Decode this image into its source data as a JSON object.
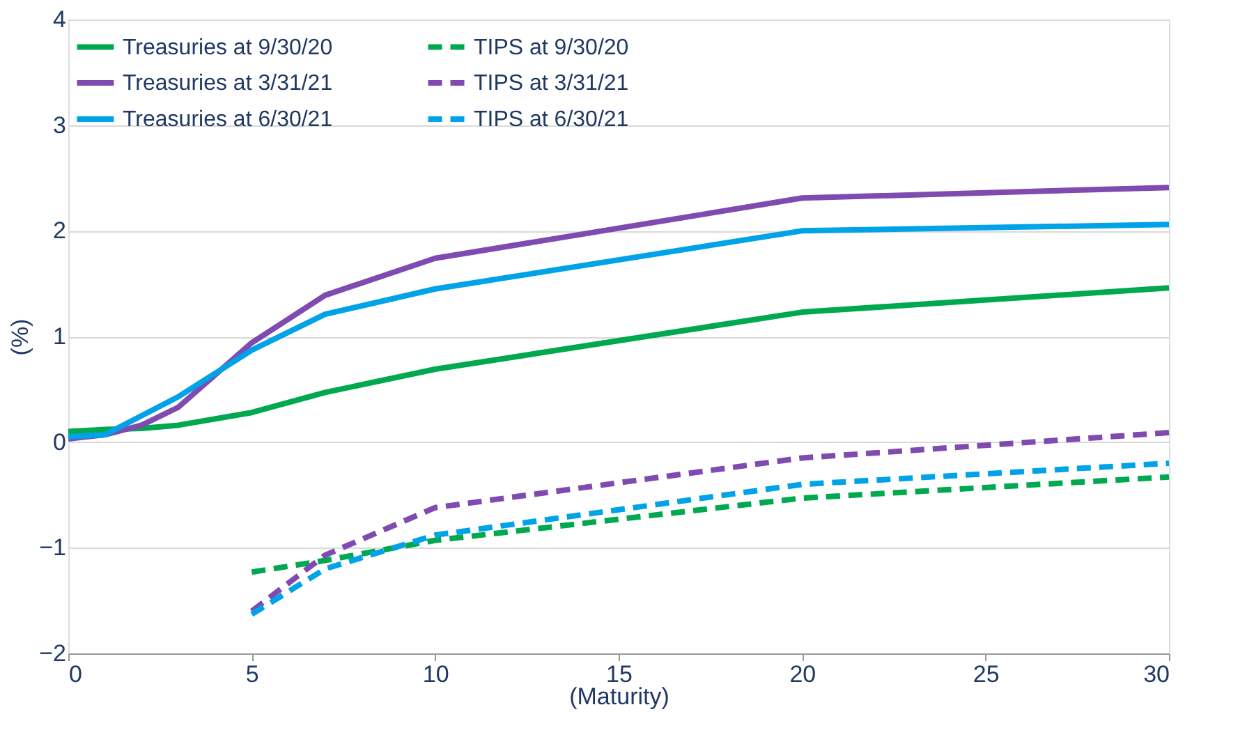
{
  "chart_data": {
    "type": "line",
    "xlabel": "(Maturity)",
    "ylabel": "(%)",
    "xlim": [
      0,
      30
    ],
    "xticks": [
      0,
      5,
      10,
      15,
      20,
      25,
      30
    ],
    "ylim": [
      -2,
      4
    ],
    "yticks": [
      -2,
      -1,
      0,
      1,
      2,
      3,
      4
    ],
    "grid": "y",
    "legend": "top left",
    "marker": "none",
    "series": [
      {
        "name": "Treasuries at 9/30/20",
        "color": "#00a94f",
        "line_style": "solid",
        "x": [
          0,
          1,
          2,
          3,
          5,
          7,
          10,
          20,
          30
        ],
        "values": [
          0.1,
          0.12,
          0.13,
          0.16,
          0.28,
          0.47,
          0.69,
          1.23,
          1.46
        ]
      },
      {
        "name": "Treasuries at 3/31/21",
        "color": "#7f4bb0",
        "line_style": "solid",
        "x": [
          0,
          1,
          2,
          3,
          5,
          7,
          10,
          20,
          30
        ],
        "values": [
          0.03,
          0.07,
          0.16,
          0.33,
          0.94,
          1.39,
          1.74,
          2.31,
          2.41
        ]
      },
      {
        "name": "Treasuries at 6/30/21",
        "color": "#00a2e8",
        "line_style": "solid",
        "x": [
          0,
          1,
          2,
          3,
          5,
          7,
          10,
          20,
          30
        ],
        "values": [
          0.05,
          0.07,
          0.25,
          0.43,
          0.87,
          1.21,
          1.45,
          2.0,
          2.06
        ]
      },
      {
        "name": "TIPS at 9/30/20",
        "color": "#00a94f",
        "line_style": "dashed",
        "x": [
          5,
          7,
          10,
          20,
          30
        ],
        "values": [
          -1.23,
          -1.12,
          -0.93,
          -0.53,
          -0.33
        ]
      },
      {
        "name": "TIPS at 3/31/21",
        "color": "#7f4bb0",
        "line_style": "dashed",
        "x": [
          5,
          7,
          10,
          20,
          30
        ],
        "values": [
          -1.6,
          -1.07,
          -0.62,
          -0.15,
          0.09
        ]
      },
      {
        "name": "TIPS at 6/30/21",
        "color": "#00a2e8",
        "line_style": "dashed",
        "x": [
          5,
          7,
          10,
          20,
          30
        ],
        "values": [
          -1.63,
          -1.2,
          -0.88,
          -0.4,
          -0.2
        ]
      }
    ]
  }
}
